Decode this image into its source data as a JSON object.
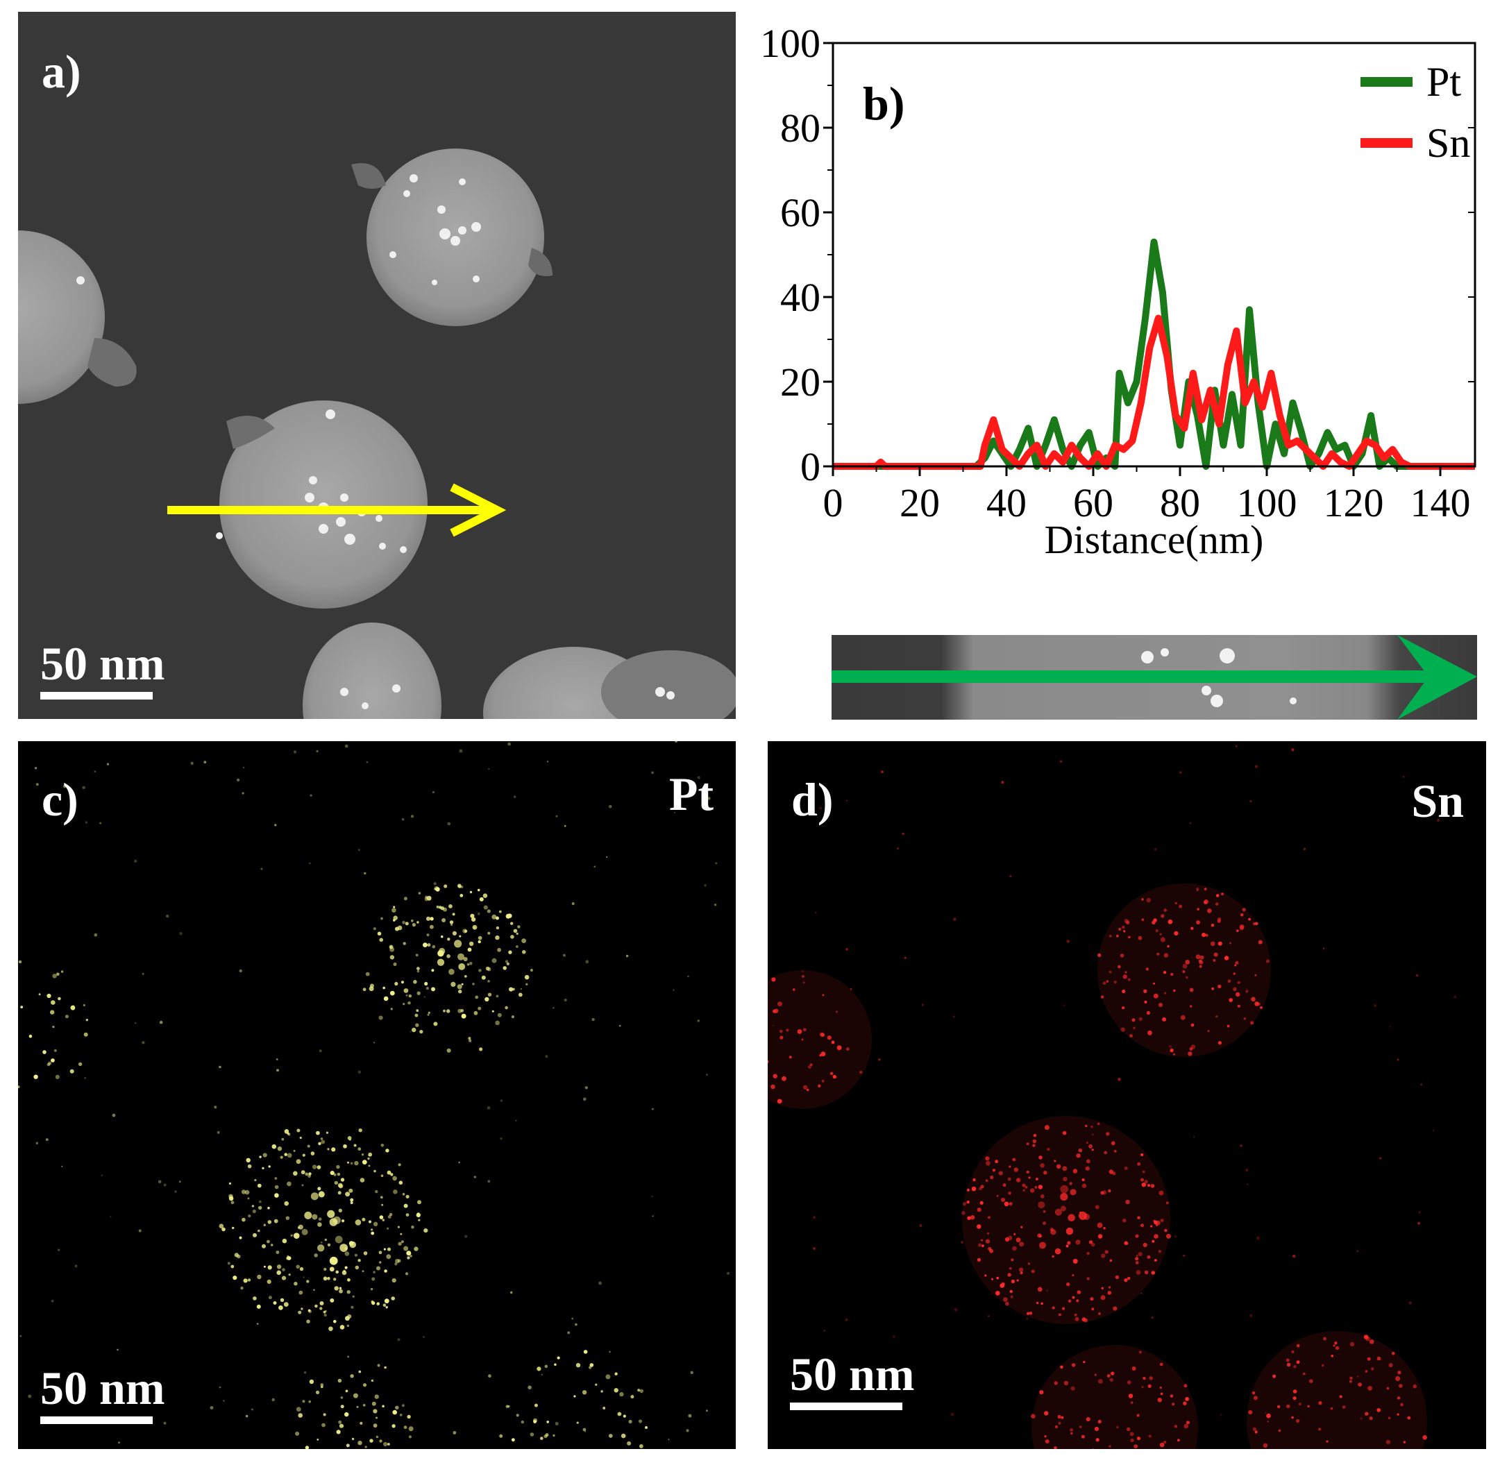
{
  "figure": {
    "panels": [
      {
        "id": "a",
        "label": "a)",
        "scale_bar": "50 nm"
      },
      {
        "id": "b",
        "label": "b)"
      },
      {
        "id": "c",
        "label": "c)",
        "element": "Pt",
        "scale_bar": "50 nm"
      },
      {
        "id": "d",
        "label": "d)",
        "element": "Sn",
        "scale_bar": "50 nm"
      }
    ],
    "colors": {
      "Pt_line": "#1a7a1a",
      "Sn_line": "#ff1a1a",
      "arrow_a": "#ffff00",
      "arrow_strip": "#00b050",
      "Pt_map": "#f2f28c",
      "Sn_map": "#ff2a2a"
    }
  },
  "chart_data": {
    "type": "line",
    "title": "",
    "xlabel": "Distance(nm)",
    "ylabel": "",
    "xlim": [
      0,
      148
    ],
    "ylim": [
      0,
      100
    ],
    "xticks": [
      0,
      20,
      40,
      60,
      80,
      100,
      120,
      140
    ],
    "yticks": [
      0,
      20,
      40,
      60,
      80,
      100
    ],
    "legend_position": "top-right",
    "series": [
      {
        "name": "Pt",
        "x": [
          0,
          10,
          20,
          30,
          33,
          35,
          37,
          39,
          41,
          43,
          45,
          47,
          49,
          51,
          53,
          55,
          57,
          59,
          61,
          63,
          65,
          66,
          68,
          70,
          72,
          74,
          76,
          78,
          80,
          82,
          84,
          86,
          88,
          90,
          92,
          94,
          96,
          98,
          100,
          102,
          104,
          106,
          108,
          110,
          112,
          114,
          116,
          118,
          120,
          122,
          124,
          126,
          128,
          130,
          135,
          148
        ],
        "y": [
          0,
          0,
          0,
          0,
          0,
          2,
          6,
          3,
          0,
          4,
          9,
          0,
          5,
          11,
          4,
          0,
          5,
          8,
          0,
          2,
          0,
          22,
          15,
          20,
          35,
          53,
          41,
          18,
          5,
          20,
          12,
          0,
          18,
          5,
          17,
          5,
          37,
          15,
          0,
          10,
          3,
          15,
          8,
          0,
          3,
          8,
          4,
          5,
          0,
          3,
          12,
          0,
          2,
          0,
          0,
          0
        ]
      },
      {
        "name": "Sn",
        "x": [
          0,
          10,
          11,
          12,
          20,
          30,
          34,
          35,
          37,
          39,
          41,
          43,
          45,
          47,
          49,
          51,
          53,
          55,
          57,
          59,
          61,
          63,
          65,
          67,
          69,
          71,
          73,
          75,
          77,
          79,
          81,
          83,
          85,
          87,
          89,
          91,
          93,
          95,
          97,
          99,
          101,
          103,
          105,
          107,
          109,
          111,
          113,
          115,
          117,
          119,
          121,
          123,
          125,
          127,
          129,
          131,
          133,
          148
        ],
        "y": [
          0,
          0,
          1,
          0,
          0,
          0,
          0,
          5,
          11,
          4,
          2,
          0,
          3,
          5,
          0,
          3,
          1,
          5,
          2,
          0,
          3,
          0,
          5,
          4,
          6,
          15,
          28,
          35,
          26,
          12,
          9,
          22,
          11,
          18,
          10,
          24,
          32,
          15,
          20,
          14,
          22,
          12,
          5,
          6,
          4,
          2,
          0,
          3,
          1,
          0,
          3,
          6,
          5,
          2,
          4,
          1,
          0,
          0
        ]
      }
    ]
  }
}
